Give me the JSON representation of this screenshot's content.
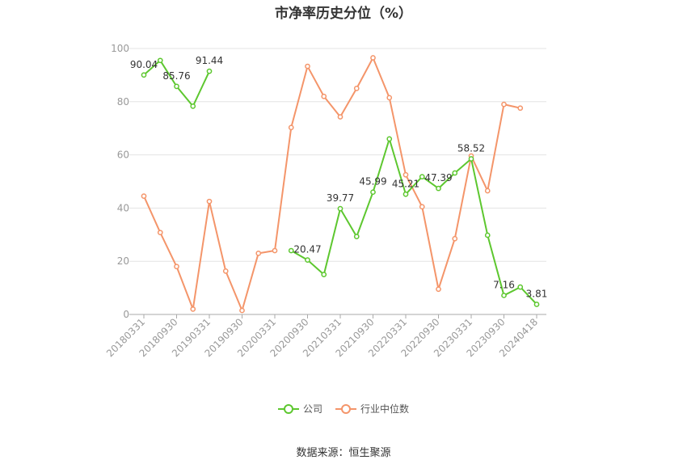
{
  "chart_data": {
    "type": "line",
    "title": "市净率历史分位（%）",
    "xlabel": "",
    "ylabel": "",
    "ylim": [
      0,
      100
    ],
    "yticks": [
      0,
      20,
      40,
      60,
      80,
      100
    ],
    "grid": true,
    "legend_position": "bottom",
    "x_tick_labels": [
      "20180331",
      "20180930",
      "20190331",
      "20190930",
      "20200331",
      "20200930",
      "20210331",
      "20210930",
      "20220331",
      "20220930",
      "20230331",
      "20230930",
      "20240418"
    ],
    "x": [
      "20180331",
      "20180630",
      "20180930",
      "20181231",
      "20190331",
      "20190630",
      "20190930",
      "20191231",
      "20200331",
      "20200630",
      "20200930",
      "20201231",
      "20210331",
      "20210630",
      "20210930",
      "20211231",
      "20220331",
      "20220630",
      "20220930",
      "20221231",
      "20230331",
      "20230630",
      "20230930",
      "20231231",
      "20240418"
    ],
    "series": [
      {
        "name": "公司",
        "color": "#5dc72f",
        "values": [
          90.04,
          95.5,
          85.76,
          78.3,
          91.44,
          null,
          null,
          null,
          null,
          24.0,
          20.47,
          15.0,
          39.77,
          29.3,
          45.99,
          66.0,
          45.21,
          51.8,
          47.39,
          53.2,
          58.52,
          29.8,
          7.16,
          10.3,
          3.81
        ],
        "labels": [
          "90.04",
          null,
          "85.76",
          null,
          "91.44",
          null,
          null,
          null,
          null,
          null,
          "20.47",
          null,
          "39.77",
          null,
          "45.99",
          null,
          "45.21",
          null,
          "47.39",
          null,
          "58.52",
          null,
          "7.16",
          null,
          "3.81"
        ]
      },
      {
        "name": "行业中位数",
        "color": "#f4956a",
        "values": [
          44.5,
          30.8,
          18.0,
          2.0,
          42.5,
          16.3,
          1.5,
          23.0,
          24.0,
          70.3,
          93.3,
          82.0,
          74.3,
          85.0,
          96.5,
          81.5,
          52.5,
          40.5,
          9.5,
          28.5,
          59.6,
          46.5,
          79.0,
          77.6,
          null
        ]
      }
    ]
  },
  "source_text": "数据来源：恒生聚源"
}
